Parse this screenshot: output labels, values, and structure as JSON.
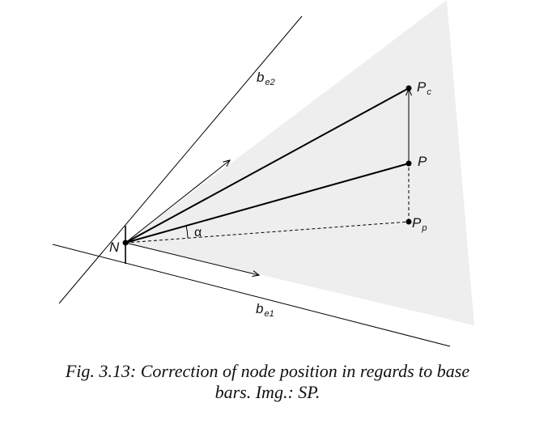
{
  "figure": {
    "labels": {
      "node": "N",
      "point_p": "P",
      "point_pc_main": "P",
      "point_pc_sub": "c",
      "point_pp_main": "P",
      "point_pp_sub": "p",
      "base_bar_1_main": "b",
      "base_bar_1_sub": "e1",
      "base_bar_2_main": "b",
      "base_bar_2_sub": "e2",
      "angle": "α"
    },
    "colors": {
      "region_fill": "#eeeeef",
      "line": "#000000"
    }
  },
  "caption": {
    "line1": "Fig. 3.13: Correction of node position in regards to base",
    "line2": "bars. Img.: SP."
  }
}
